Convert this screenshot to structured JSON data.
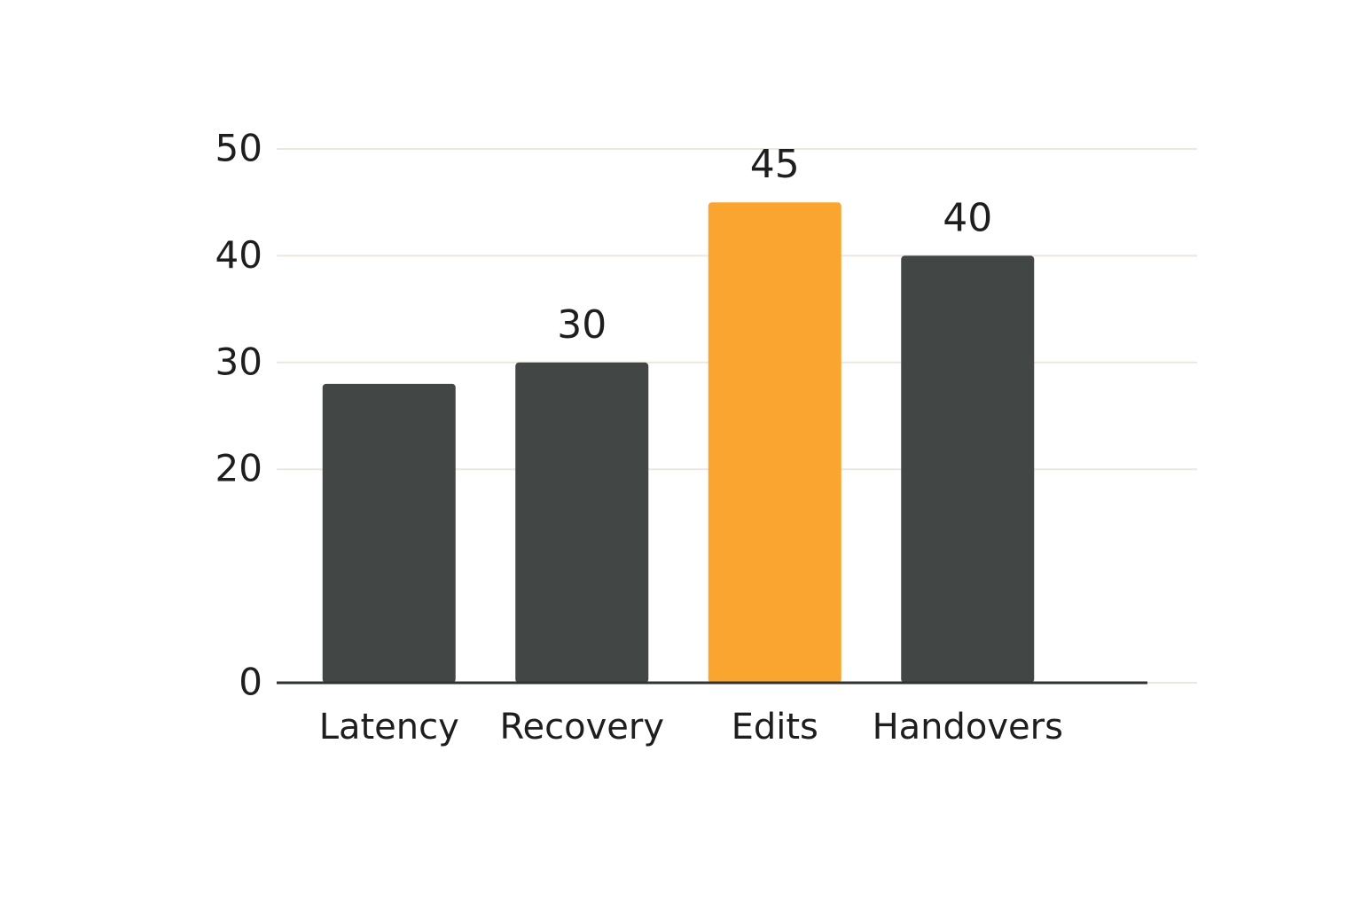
{
  "chart_data": {
    "type": "bar",
    "categories": [
      "Latency",
      "Recovery",
      "Edits",
      "Handovers"
    ],
    "values": [
      28,
      30,
      45,
      40
    ],
    "data_labels": [
      false,
      true,
      true,
      true
    ],
    "colors": [
      "#424645",
      "#424645",
      "#fba531",
      "#424645"
    ],
    "ylim": [
      0,
      50
    ],
    "yticks": [
      0,
      20,
      30,
      40,
      50
    ],
    "grid": true
  }
}
